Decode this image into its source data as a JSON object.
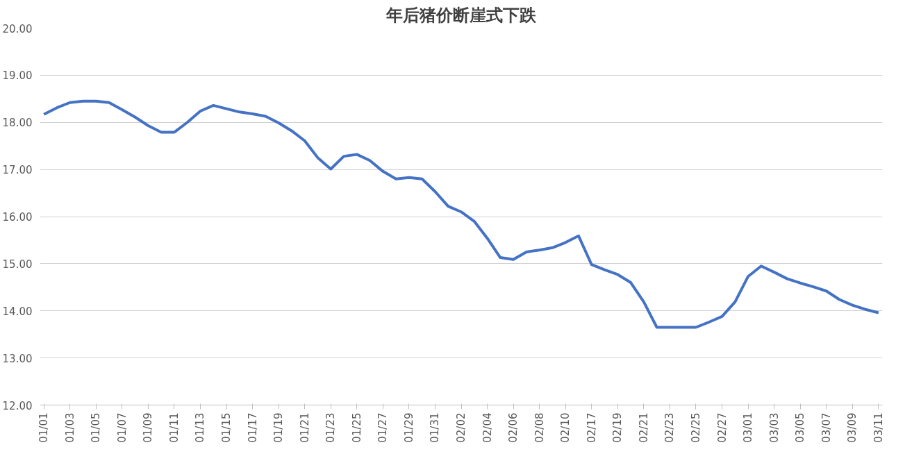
{
  "chart_data": {
    "type": "line",
    "title": "年后猪价断崖式下跌",
    "categories": [
      "01/01",
      null,
      "01/03",
      null,
      "01/05",
      null,
      "01/07",
      null,
      "01/09",
      null,
      "01/11",
      null,
      "01/13",
      null,
      "01/15",
      null,
      "01/17",
      null,
      "01/19",
      null,
      "01/21",
      null,
      "01/23",
      null,
      "01/25",
      null,
      "01/27",
      null,
      "01/29",
      null,
      "01/31",
      null,
      "02/02",
      null,
      "02/04",
      null,
      "02/06",
      null,
      "02/08",
      null,
      "02/10",
      null,
      "02/17",
      null,
      "02/19",
      null,
      "02/21",
      null,
      "02/23",
      null,
      "02/25",
      null,
      "02/27",
      null,
      "03/01",
      null,
      "03/03",
      null,
      "03/05",
      null,
      "03/07",
      null,
      "03/09",
      null,
      "03/11"
    ],
    "series": [
      {
        "color": "#4472c4",
        "values": [
          18.17,
          18.31,
          18.42,
          18.45,
          18.45,
          18.42,
          18.27,
          18.11,
          17.93,
          17.79,
          17.79,
          18.0,
          18.24,
          18.36,
          18.29,
          18.22,
          18.18,
          18.13,
          17.99,
          17.82,
          17.61,
          17.25,
          17.01,
          17.28,
          17.32,
          17.19,
          16.96,
          16.8,
          16.83,
          16.8,
          16.53,
          16.22,
          16.1,
          15.9,
          15.54,
          15.13,
          15.09,
          15.25,
          15.29,
          15.34,
          15.45,
          15.59,
          14.98,
          14.87,
          14.77,
          14.6,
          14.19,
          13.65,
          13.65,
          13.65,
          13.65,
          13.76,
          13.88,
          14.19,
          14.73,
          14.95,
          14.82,
          14.68,
          14.59,
          14.51,
          14.42,
          14.24,
          14.12,
          14.03,
          13.96
        ]
      }
    ],
    "ylim": [
      12,
      20
    ],
    "yticks": [
      {
        "value": 12,
        "label": "12.00"
      },
      {
        "value": 13,
        "label": "13.00"
      },
      {
        "value": 14,
        "label": "14.00"
      },
      {
        "value": 15,
        "label": "15.00"
      },
      {
        "value": 16,
        "label": "16.00"
      },
      {
        "value": 17,
        "label": "17.00"
      },
      {
        "value": 18,
        "label": "18.00"
      },
      {
        "value": 19,
        "label": "19.00"
      },
      {
        "value": 20,
        "label": "20.00"
      }
    ],
    "grid": "y",
    "marker": "none",
    "line_style": "solid"
  }
}
